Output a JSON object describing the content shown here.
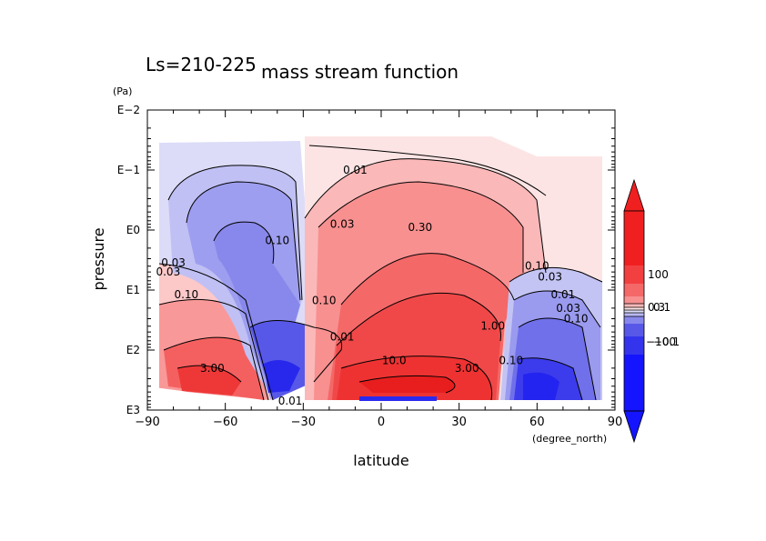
{
  "chart_data": {
    "type": "contour",
    "title": "mass stream function",
    "subtitle": "Ls=210-225",
    "xlabel": "latitude",
    "xunit": "(degree_north)",
    "ylabel": "pressure",
    "yunit": "(Pa)",
    "xlim": [
      -90,
      90
    ],
    "ylim": [
      0.01,
      1000
    ],
    "yscale": "log",
    "y_reversed": true,
    "grid": false,
    "x_ticks": [
      {
        "value": -90,
        "label": "−90"
      },
      {
        "value": -60,
        "label": "−60"
      },
      {
        "value": -30,
        "label": "−30"
      },
      {
        "value": 0,
        "label": "0"
      },
      {
        "value": 30,
        "label": "30"
      },
      {
        "value": 60,
        "label": "60"
      },
      {
        "value": 90,
        "label": "90"
      }
    ],
    "y_ticks": [
      {
        "value": 0.01,
        "label": "E−2"
      },
      {
        "value": 0.1,
        "label": "E−1"
      },
      {
        "value": 1,
        "label": "E0"
      },
      {
        "value": 10,
        "label": "E1"
      },
      {
        "value": 100,
        "label": "E2"
      },
      {
        "value": 1000,
        "label": "E3"
      }
    ],
    "colorbar": {
      "labels": [
        {
          "value": 100,
          "label": "100"
        },
        {
          "value": 0.3,
          "label": "0.3"
        },
        {
          "value": 0.1,
          "label": "0.1"
        },
        {
          "value": -0.1,
          "label": "−0.1"
        },
        {
          "value": -100,
          "label": "−100"
        }
      ],
      "positive_color": "#ff2020",
      "negative_color": "#1414ff"
    },
    "cells": [
      {
        "lat": -45,
        "p": 3.0,
        "value": -2.0
      },
      {
        "lat": -42,
        "p": 500,
        "value": -30.0
      },
      {
        "lat": -35,
        "p": 200,
        "value": -10.0
      },
      {
        "lat": -30,
        "p": 100,
        "value": -3.0
      },
      {
        "lat": -60,
        "p": 2.0,
        "value": -0.3
      },
      {
        "lat": -70,
        "p": 0.3,
        "value": -0.03
      },
      {
        "lat": -80,
        "p": 0.05,
        "value": -0.01
      },
      {
        "lat": 0,
        "p": 300,
        "value": 12.0
      },
      {
        "lat": 20,
        "p": 150,
        "value": 10.0
      },
      {
        "lat": 15,
        "p": 10,
        "value": 1.5
      },
      {
        "lat": 10,
        "p": 2.0,
        "value": 0.3
      },
      {
        "lat": 10,
        "p": 0.3,
        "value": 0.03
      },
      {
        "lat": 20,
        "p": 0.05,
        "value": 0.01
      },
      {
        "lat": -70,
        "p": 300,
        "value": 3.0
      },
      {
        "lat": -70,
        "p": 30,
        "value": 1.0
      },
      {
        "lat": -75,
        "p": 8,
        "value": 0.1
      },
      {
        "lat": 62,
        "p": 500,
        "value": -30.0
      },
      {
        "lat": 65,
        "p": 100,
        "value": -3.0
      },
      {
        "lat": 70,
        "p": 30,
        "value": -0.3
      },
      {
        "lat": 75,
        "p": 8,
        "value": -0.03
      },
      {
        "lat": 80,
        "p": 1.0,
        "value": 0.01
      }
    ],
    "contour_labels": [
      {
        "lat": -40,
        "p": 1.5,
        "label": "0.10"
      },
      {
        "lat": -80,
        "p": 3.5,
        "label": "0.03"
      },
      {
        "lat": -82,
        "p": 5,
        "label": "0.03"
      },
      {
        "lat": -75,
        "p": 12,
        "label": "0.10"
      },
      {
        "lat": -65,
        "p": 200,
        "label": "3.00"
      },
      {
        "lat": -35,
        "p": 700,
        "label": "0.01"
      },
      {
        "lat": -10,
        "p": 0.1,
        "label": "0.01"
      },
      {
        "lat": -15,
        "p": 0.8,
        "label": "0.03"
      },
      {
        "lat": 15,
        "p": 0.9,
        "label": "0.30"
      },
      {
        "lat": -22,
        "p": 15,
        "label": "0.10"
      },
      {
        "lat": -15,
        "p": 60,
        "label": "0.01"
      },
      {
        "lat": 5,
        "p": 150,
        "label": "10.0"
      },
      {
        "lat": 43,
        "p": 40,
        "label": "1.00"
      },
      {
        "lat": 33,
        "p": 200,
        "label": "3.00"
      },
      {
        "lat": 50,
        "p": 150,
        "label": "0.10"
      },
      {
        "lat": 60,
        "p": 4,
        "label": "0.10"
      },
      {
        "lat": 65,
        "p": 6,
        "label": "0.03"
      },
      {
        "lat": 70,
        "p": 12,
        "label": "0.01"
      },
      {
        "lat": 72,
        "p": 20,
        "label": "0.03"
      },
      {
        "lat": 75,
        "p": 30,
        "label": "0.10"
      }
    ]
  }
}
